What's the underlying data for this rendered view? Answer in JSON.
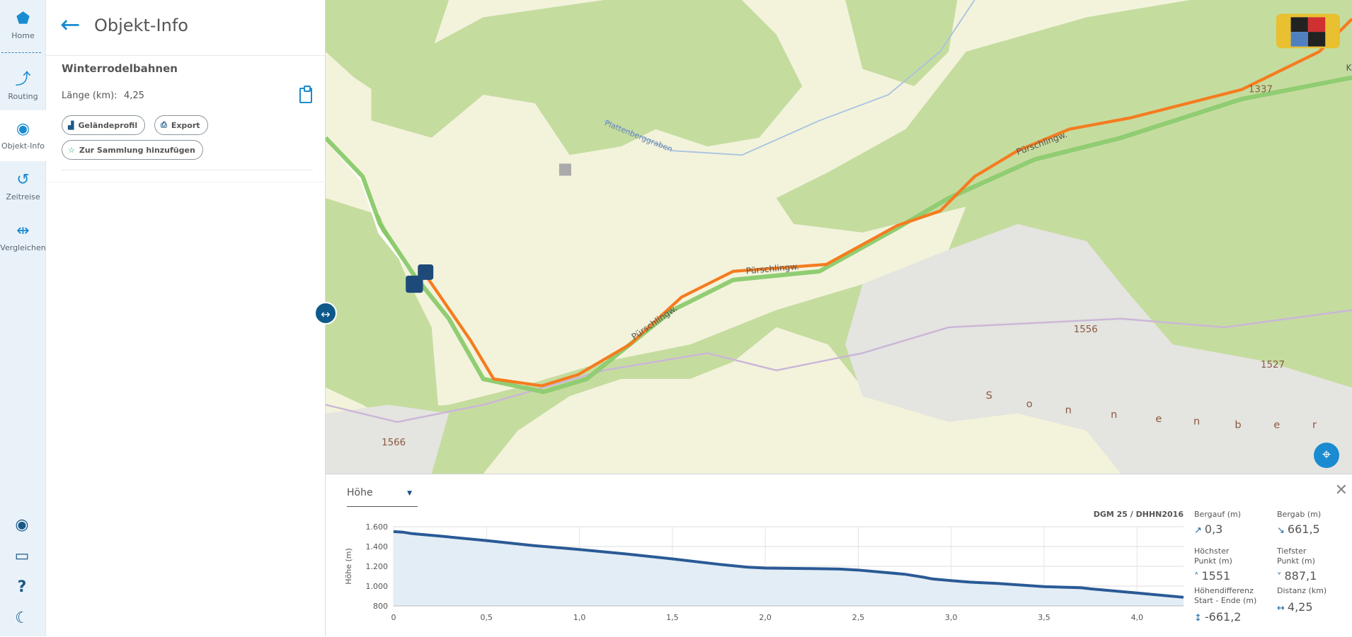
{
  "nav": {
    "items": [
      {
        "label": "Home",
        "icon": "bavaria-map-icon"
      },
      {
        "label": "Routing",
        "icon": "routing-icon"
      },
      {
        "label": "Objekt-Info",
        "icon": "target-icon",
        "active": true
      },
      {
        "label": "Zeitreise",
        "icon": "history-icon"
      },
      {
        "label": "Vergleichen",
        "icon": "compare-icon"
      }
    ],
    "bottom": [
      "user-icon",
      "feedback-icon",
      "help-icon",
      "night-mode-icon"
    ]
  },
  "panel": {
    "title": "Objekt-Info",
    "object_name": "Winterrodelbahnen",
    "length_label": "Länge (km):",
    "length_value": "4,25",
    "buttons": {
      "profile": "Geländeprofil",
      "export": "Export",
      "collection": "Zur Sammlung hinzufügen"
    }
  },
  "map": {
    "road_labels": [
      "Pürschlingw.",
      "Pürschlingw.",
      "Pürschlingw."
    ],
    "stream_label": "Plattenberggraben",
    "peaks": [
      "1337",
      "1556",
      "1527",
      "1566"
    ],
    "area_letters": [
      "S",
      "o",
      "n",
      "n",
      "e",
      "n",
      "b",
      "e",
      "r"
    ],
    "edge_label": "K",
    "route_color": "#f57c1f",
    "track_color": "#7cc45a"
  },
  "profile": {
    "select_value": "Höhe",
    "source": "DGM 25 / DHHN2016",
    "stats": [
      {
        "label": "Bergauf (m)",
        "value": "0,3",
        "icon": "↗"
      },
      {
        "label": "Bergab (m)",
        "value": "661,5",
        "icon": "↘"
      },
      {
        "label": "Höchster Punkt (m)",
        "value": "1551",
        "icon": "˄"
      },
      {
        "label": "Tiefster Punkt (m)",
        "value": "887,1",
        "icon": "˅"
      },
      {
        "label": "Höhendifferenz Start - Ende (m)",
        "value": "-661,2",
        "icon": "↕"
      },
      {
        "label": "Distanz (km)",
        "value": "4,25",
        "icon": "↔"
      }
    ]
  },
  "chart_data": {
    "type": "area",
    "ylabel": "Höhe (m)",
    "xlabel": "",
    "xlim": [
      0,
      4.25
    ],
    "ylim": [
      800,
      1600
    ],
    "xticks": [
      "0",
      "0,5",
      "1,0",
      "1,5",
      "2,0",
      "2,5",
      "3,0",
      "3,5",
      "4,0"
    ],
    "xtick_values": [
      0,
      0.5,
      1,
      1.5,
      2,
      2.5,
      3,
      3.5,
      4
    ],
    "yticks": [
      "800",
      "1.000",
      "1.200",
      "1.400",
      "1.600"
    ],
    "ytick_values": [
      800,
      1000,
      1200,
      1400,
      1600
    ],
    "grid": true,
    "line_color": "#2a5a96",
    "fill_color": "#e3edf5",
    "x": [
      0,
      0.05,
      0.1,
      0.25,
      0.5,
      0.75,
      1.0,
      1.25,
      1.5,
      1.75,
      1.9,
      2.0,
      2.25,
      2.4,
      2.5,
      2.75,
      2.85,
      2.9,
      3.0,
      3.1,
      3.25,
      3.5,
      3.7,
      3.75,
      4.0,
      4.25
    ],
    "y": [
      1551,
      1545,
      1530,
      1505,
      1460,
      1410,
      1370,
      1325,
      1275,
      1220,
      1192,
      1182,
      1177,
      1172,
      1162,
      1120,
      1090,
      1072,
      1055,
      1040,
      1027,
      995,
      983,
      972,
      930,
      887
    ]
  }
}
